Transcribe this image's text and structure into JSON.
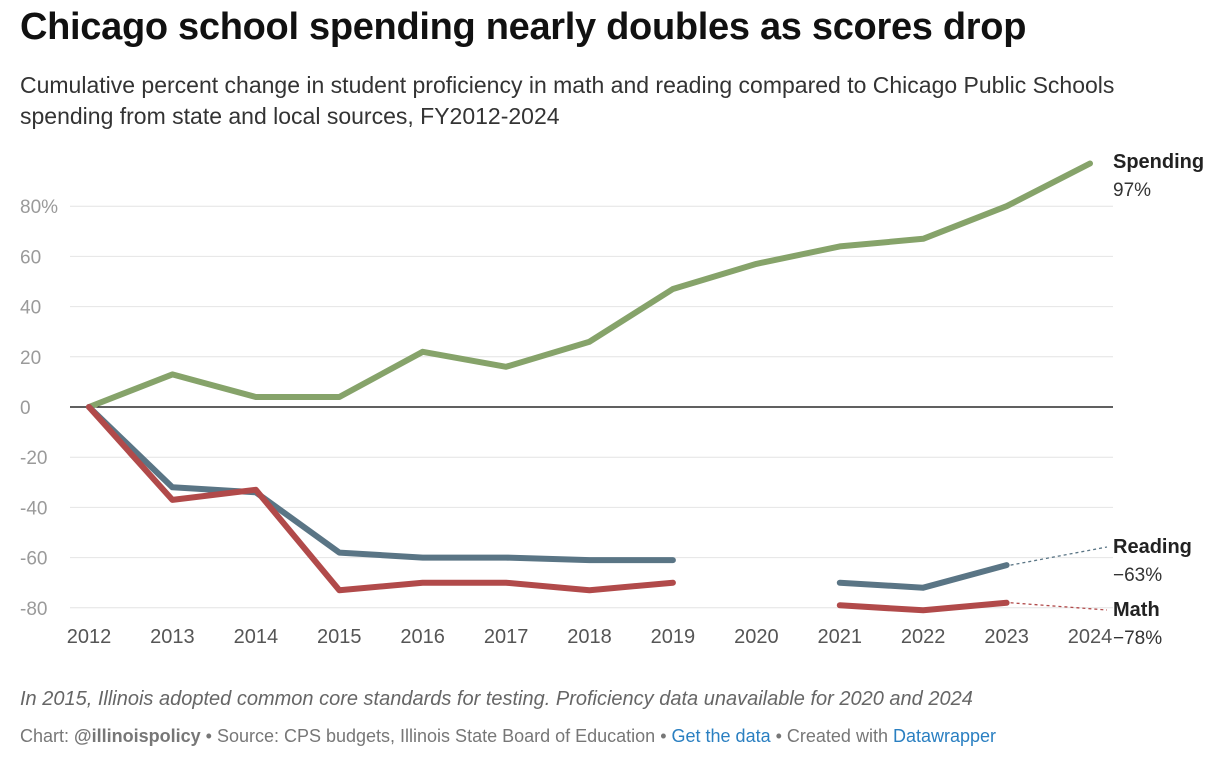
{
  "title": "Chicago school spending nearly doubles as scores drop",
  "subtitle": "Cumulative percent change in student proficiency in math and reading compared to Chicago Public Schools spending from state and local sources, FY2012-2024",
  "note": "In 2015, Illinois adopted common core standards for testing. Proficiency data unavailable for 2020 and 2024",
  "footer": {
    "chart_label": "Chart:",
    "byline": "@illinoispolicy",
    "sep1": " • ",
    "source": "Source: CPS budgets, Illinois State Board of Education",
    "sep2": " • ",
    "get_data": "Get the data",
    "sep3": " • ",
    "created": "Created with ",
    "datawrapper": "Datawrapper"
  },
  "chart_data": {
    "type": "line",
    "x": [
      "2012",
      "2013",
      "2014",
      "2015",
      "2016",
      "2017",
      "2018",
      "2019",
      "2020",
      "2021",
      "2022",
      "2023",
      "2024"
    ],
    "y_ticks": [
      {
        "value": 80,
        "label": "80%"
      },
      {
        "value": 60,
        "label": "60"
      },
      {
        "value": 40,
        "label": "40"
      },
      {
        "value": 20,
        "label": "20"
      },
      {
        "value": 0,
        "label": "0"
      },
      {
        "value": -20,
        "label": "-20"
      },
      {
        "value": -40,
        "label": "-40"
      },
      {
        "value": -60,
        "label": "-60"
      },
      {
        "value": -80,
        "label": "-80"
      }
    ],
    "ylim": [
      -80,
      97
    ],
    "grid": true,
    "series": [
      {
        "name": "Spending",
        "end_label": "97%",
        "color": "#86a36a",
        "values": [
          0,
          13,
          4,
          4,
          22,
          16,
          26,
          47,
          57,
          64,
          67,
          80,
          97
        ]
      },
      {
        "name": "Reading",
        "end_label": "−63%",
        "color": "#5a7585",
        "values": [
          0,
          -32,
          -34,
          -58,
          -60,
          -60,
          -61,
          -61,
          null,
          -70,
          -72,
          -63,
          null
        ]
      },
      {
        "name": "Math",
        "end_label": "−78%",
        "color": "#b14a4a",
        "values": [
          0,
          -37,
          -33,
          -73,
          -70,
          -70,
          -73,
          -70,
          null,
          -79,
          -81,
          -78,
          null
        ]
      }
    ]
  }
}
